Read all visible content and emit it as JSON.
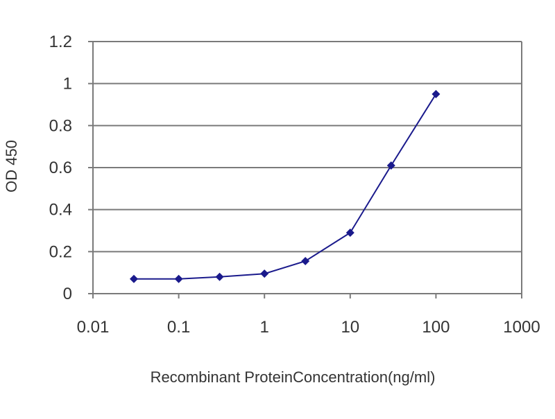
{
  "chart_data": {
    "type": "line",
    "xscale": "log",
    "xlabel": "Recombinant ProteinConcentration(ng/ml)",
    "ylabel": "OD 450",
    "xlim": [
      0.01,
      1000
    ],
    "ylim": [
      0,
      1.2
    ],
    "x_ticks": [
      0.01,
      0.1,
      1,
      10,
      100,
      1000
    ],
    "x_tick_labels": [
      "0.01",
      "0.1",
      "1",
      "10",
      "100",
      "1000"
    ],
    "y_ticks": [
      0,
      0.2,
      0.4,
      0.6,
      0.8,
      1,
      1.2
    ],
    "y_tick_labels": [
      "0",
      "0.2",
      "0.4",
      "0.6",
      "0.8",
      "1",
      "1.2"
    ],
    "grid": "horizontal",
    "legend": "none",
    "series": [
      {
        "color": "#1a1a8c",
        "marker": "diamond",
        "x": [
          0.03,
          0.1,
          0.3,
          1,
          3,
          10,
          30,
          100
        ],
        "y": [
          0.07,
          0.07,
          0.08,
          0.095,
          0.155,
          0.29,
          0.61,
          0.95
        ]
      }
    ],
    "colors": {
      "plot_background": "#ffffff",
      "gridline": "#7a7a7a",
      "axis": "#7a7a7a"
    }
  }
}
